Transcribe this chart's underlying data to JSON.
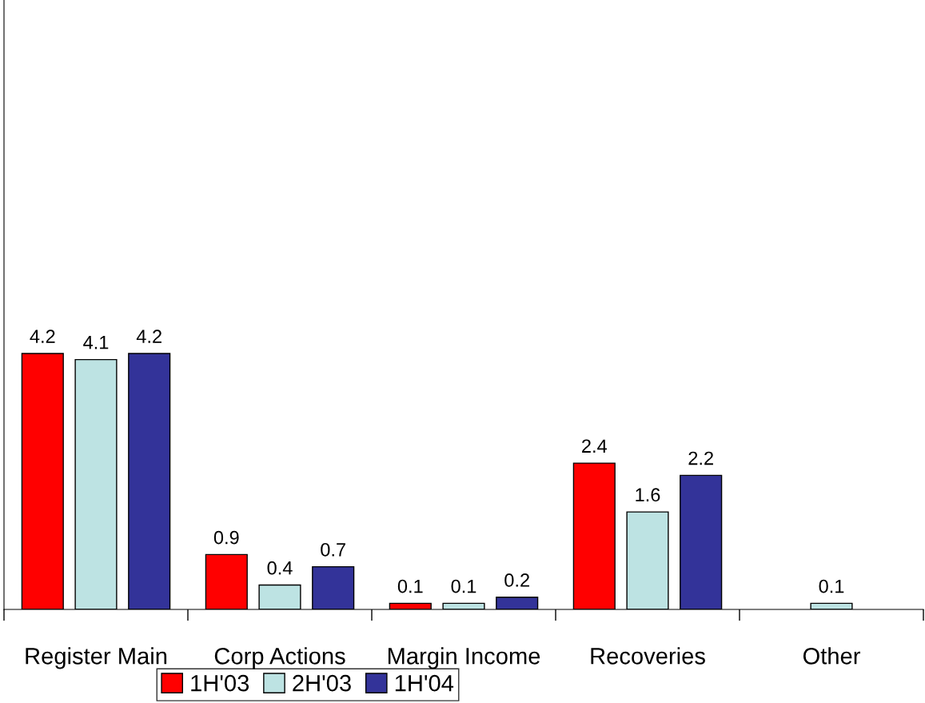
{
  "chart_data": {
    "type": "bar",
    "categories": [
      "Register Main",
      "Corp Actions",
      "Margin Income",
      "Recoveries",
      "Other"
    ],
    "series": [
      {
        "name": "1H'03",
        "color": "#ff0000",
        "values": [
          4.2,
          0.9,
          0.1,
          2.4,
          null
        ]
      },
      {
        "name": "2H'03",
        "color": "#bde3e3",
        "values": [
          4.1,
          0.4,
          0.1,
          1.6,
          0.1
        ]
      },
      {
        "name": "1H'04",
        "color": "#333399",
        "values": [
          4.2,
          0.7,
          0.2,
          2.2,
          null
        ]
      }
    ],
    "ylim": [
      0,
      10
    ],
    "data_labels": true,
    "legend": "bottom",
    "grid": false
  }
}
